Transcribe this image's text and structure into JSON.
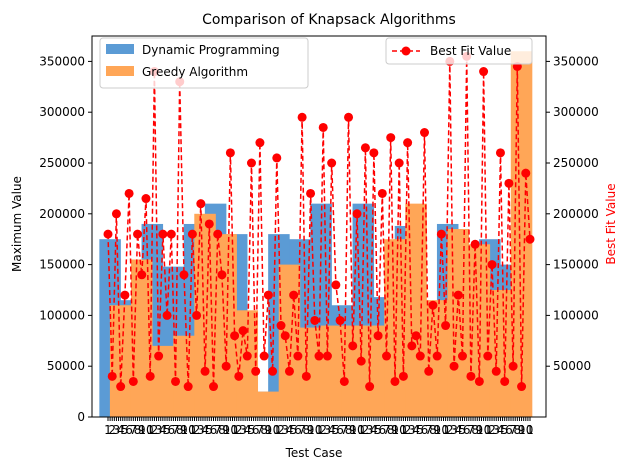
{
  "chart_data": {
    "type": "bar",
    "title": "Comparison of Knapsack Algorithms",
    "xlabel": "Test Case",
    "ylabel": "Maximum Value",
    "ylabel_right": "Best Fit Value",
    "ylim": [
      0,
      375000
    ],
    "ylim_right": [
      0,
      375000
    ],
    "yticks": [
      0,
      50000,
      100000,
      150000,
      200000,
      250000,
      300000,
      350000
    ],
    "yticks_right": [
      50000,
      100000,
      150000,
      200000,
      250000,
      300000,
      350000
    ],
    "xtick_labels_visible": [
      "1",
      "2",
      "3",
      "4",
      "5",
      "6",
      "7",
      "8",
      "9",
      "10"
    ],
    "x_range": [
      0,
      200
    ],
    "grid": false,
    "legend_left": "upper-left",
    "legend_right": "upper-right",
    "colors": {
      "dp": "#5b9bd5",
      "greedy": "#ffa657",
      "best_fit": "#ff0000",
      "right_axis_label": "#ff0000"
    },
    "series": [
      {
        "name": "Dynamic Programming",
        "type": "bar",
        "x": [
          1,
          11,
          21,
          31,
          41,
          51,
          61,
          71,
          81,
          91,
          101,
          111,
          121,
          131,
          141,
          151,
          161,
          171,
          181,
          191
        ],
        "values": [
          175000,
          115000,
          190000,
          148000,
          190000,
          210000,
          180000,
          25000,
          180000,
          175000,
          210000,
          110000,
          210000,
          118000,
          188000,
          78000,
          190000,
          165000,
          175000,
          150000
        ]
      },
      {
        "name": "Greedy Algorithm",
        "type": "bar",
        "x": [
          6,
          16,
          26,
          36,
          46,
          56,
          66,
          76,
          86,
          96,
          106,
          116,
          126,
          136,
          146,
          156,
          166,
          176,
          186,
          196
        ],
        "values": [
          110000,
          155000,
          70000,
          80000,
          200000,
          180000,
          105000,
          25000,
          150000,
          88000,
          90000,
          90000,
          90000,
          175000,
          210000,
          115000,
          185000,
          170000,
          125000,
          360000
        ]
      },
      {
        "name": "Best Fit Value",
        "type": "line",
        "x": [
          0,
          2,
          4,
          6,
          8,
          10,
          12,
          14,
          16,
          18,
          20,
          22,
          24,
          26,
          28,
          30,
          32,
          34,
          36,
          38,
          40,
          42,
          44,
          46,
          48,
          50,
          52,
          54,
          56,
          58,
          60,
          62,
          64,
          66,
          68,
          70,
          72,
          74,
          76,
          78,
          80,
          82,
          84,
          86,
          88,
          90,
          92,
          94,
          96,
          98,
          100,
          102,
          104,
          106,
          108,
          110,
          112,
          114,
          116,
          118,
          120,
          122,
          124,
          126,
          128,
          130,
          132,
          134,
          136,
          138,
          140,
          142,
          144,
          146,
          148,
          150,
          152,
          154,
          156,
          158,
          160,
          162,
          164,
          166,
          168,
          170,
          172,
          174,
          176,
          178,
          180,
          182,
          184,
          186,
          188,
          190,
          192,
          194,
          196,
          198,
          200
        ],
        "values": [
          180000,
          40000,
          200000,
          30000,
          120000,
          220000,
          35000,
          180000,
          140000,
          215000,
          40000,
          340000,
          60000,
          180000,
          100000,
          180000,
          35000,
          330000,
          140000,
          30000,
          180000,
          100000,
          210000,
          45000,
          190000,
          30000,
          180000,
          140000,
          50000,
          260000,
          80000,
          40000,
          85000,
          60000,
          250000,
          45000,
          270000,
          60000,
          120000,
          45000,
          255000,
          90000,
          80000,
          45000,
          120000,
          60000,
          295000,
          40000,
          220000,
          95000,
          60000,
          285000,
          60000,
          250000,
          130000,
          95000,
          35000,
          295000,
          70000,
          200000,
          55000,
          265000,
          30000,
          260000,
          80000,
          220000,
          60000,
          275000,
          35000,
          250000,
          40000,
          270000,
          70000,
          80000,
          60000,
          280000,
          45000,
          110000,
          60000,
          180000,
          90000,
          350000,
          50000,
          120000,
          60000,
          355000,
          40000,
          170000,
          35000,
          340000,
          60000,
          150000,
          45000,
          260000,
          35000,
          230000,
          50000,
          345000,
          30000,
          240000,
          175000
        ]
      }
    ]
  }
}
